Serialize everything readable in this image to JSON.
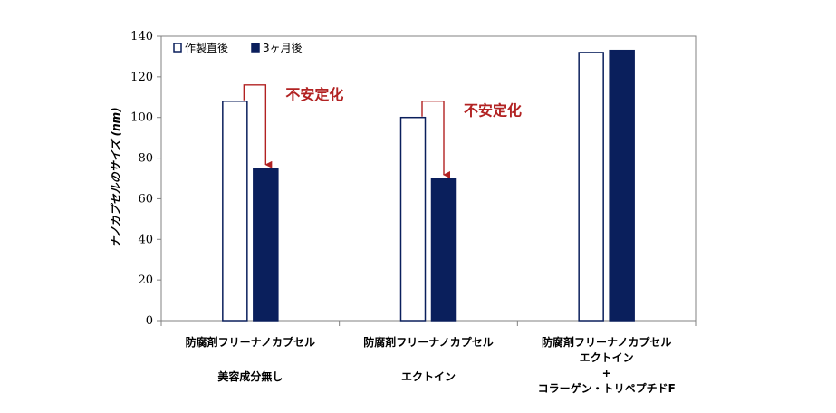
{
  "chart_data": {
    "type": "bar",
    "title": "",
    "ylabel": "ナノカプセルのサイズ (nm)",
    "xlabel": "",
    "ylim": [
      0,
      140
    ],
    "yticks": [
      0,
      20,
      40,
      60,
      80,
      100,
      120,
      140
    ],
    "grid": false,
    "legend_position": "top-left",
    "categories": [
      [
        "防腐剤フリーナノカプセル",
        "",
        "美容成分無し"
      ],
      [
        "防腐剤フリーナノカプセル",
        "",
        "エクトイン"
      ],
      [
        "防腐剤フリーナノカプセル",
        "エクトイン",
        "+",
        "コラーゲン・トリペプチドF"
      ]
    ],
    "series": [
      {
        "name": "作製直後",
        "values": [
          108,
          100,
          132
        ],
        "fill": "#ffffff",
        "stroke": "#0a1f5c"
      },
      {
        "name": "3ヶ月後",
        "values": [
          75,
          70,
          133
        ],
        "fill": "#0a1f5c",
        "stroke": "#0a1f5c"
      }
    ],
    "annotations": [
      {
        "text": "不安定化",
        "category_index": 0
      },
      {
        "text": "不安定化",
        "category_index": 1
      }
    ],
    "colors": {
      "navy": "#0a1f5c",
      "annotation": "#b22222"
    }
  }
}
